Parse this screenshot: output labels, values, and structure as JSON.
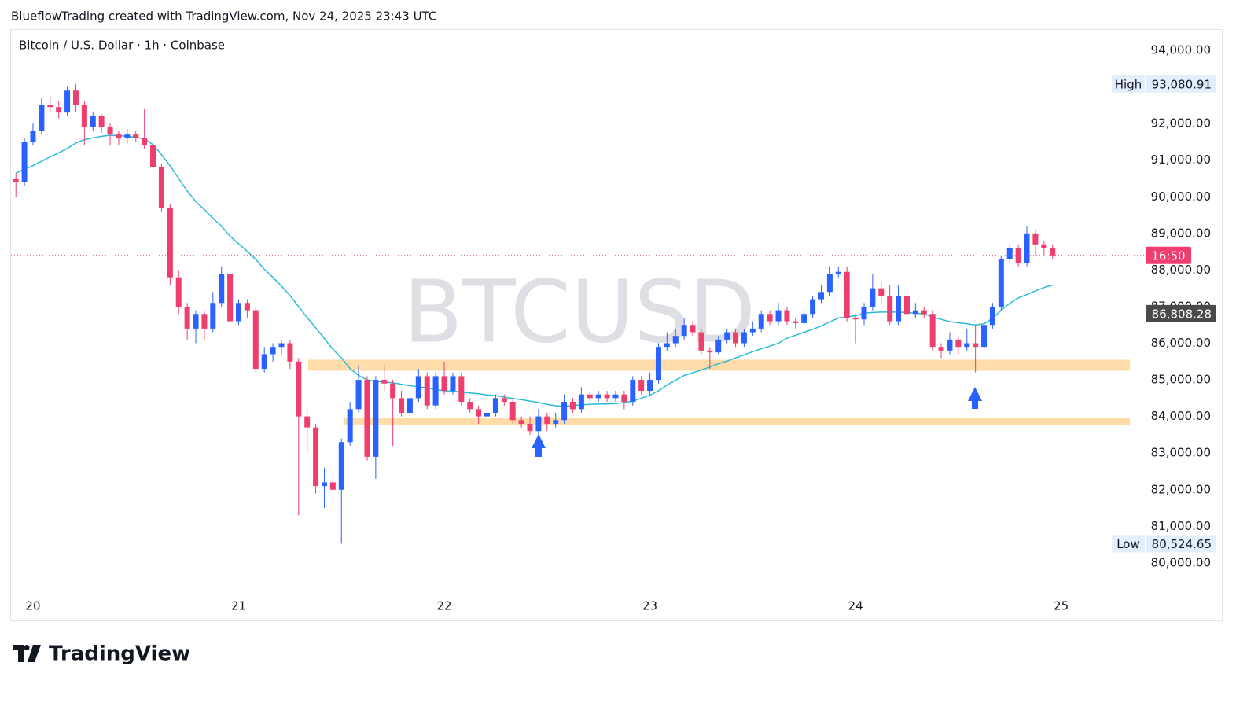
{
  "header": {
    "attribution": "BlueflowTrading created with TradingView.com, Nov 24, 2025 23:43 UTC"
  },
  "chart_data": {
    "type": "candlestick",
    "title": "Bitcoin / U.S. Dollar · 1h · Coinbase",
    "watermark": "BTCUSD",
    "up_color": "#2962ff",
    "down_color": "#ef3e6e",
    "x": [
      19.9167,
      19.9583,
      20,
      20.0417,
      20.0833,
      20.125,
      20.1667,
      20.2083,
      20.25,
      20.2917,
      20.3333,
      20.375,
      20.4167,
      20.4583,
      20.5,
      20.5417,
      20.5833,
      20.625,
      20.6667,
      20.7083,
      20.75,
      20.7917,
      20.8333,
      20.875,
      20.9167,
      20.9583,
      21,
      21.0417,
      21.0833,
      21.125,
      21.1667,
      21.2083,
      21.25,
      21.2917,
      21.3333,
      21.375,
      21.4167,
      21.4583,
      21.5,
      21.5417,
      21.5833,
      21.625,
      21.6667,
      21.7083,
      21.75,
      21.7917,
      21.8333,
      21.875,
      21.9167,
      21.9583,
      22,
      22.0417,
      22.0833,
      22.125,
      22.1667,
      22.2083,
      22.25,
      22.2917,
      22.3333,
      22.375,
      22.4167,
      22.4583,
      22.5,
      22.5417,
      22.5833,
      22.625,
      22.6667,
      22.7083,
      22.75,
      22.7917,
      22.8333,
      22.875,
      22.9167,
      22.9583,
      23,
      23.0417,
      23.0833,
      23.125,
      23.1667,
      23.2083,
      23.25,
      23.2917,
      23.3333,
      23.375,
      23.4167,
      23.4583,
      23.5,
      23.5417,
      23.5833,
      23.625,
      23.6667,
      23.7083,
      23.75,
      23.7917,
      23.8333,
      23.875,
      23.9167,
      23.9583,
      24,
      24.0417,
      24.0833,
      24.125,
      24.1667,
      24.2083,
      24.25,
      24.2917,
      24.3333,
      24.375,
      24.4167,
      24.4583,
      24.5,
      24.5417,
      24.5833,
      24.625,
      24.6667,
      24.7083,
      24.75,
      24.7917,
      24.8333,
      24.875,
      24.9167,
      24.9583
    ],
    "open": [
      90500,
      90400,
      91500,
      91800,
      92500,
      92450,
      92300,
      92900,
      92500,
      91900,
      92200,
      91900,
      91700,
      91600,
      91700,
      91600,
      91400,
      90800,
      89700,
      87800,
      87000,
      86400,
      86800,
      86400,
      87100,
      87900,
      86600,
      87100,
      86900,
      85300,
      85700,
      85900,
      86000,
      85500,
      84000,
      83700,
      82100,
      82200,
      82000,
      83300,
      84200,
      85000,
      82900,
      85000,
      84900,
      84500,
      84100,
      84500,
      85100,
      84300,
      85100,
      84700,
      85100,
      84400,
      84200,
      84000,
      84100,
      84500,
      84400,
      83900,
      83800,
      83600,
      84000,
      83800,
      83900,
      84400,
      84200,
      84600,
      84500,
      84600,
      84500,
      84600,
      84400,
      85000,
      84700,
      85000,
      85900,
      86000,
      86200,
      86500,
      86300,
      85800,
      85750,
      86100,
      86300,
      86000,
      86300,
      86400,
      86800,
      86600,
      86900,
      86600,
      86550,
      86800,
      87200,
      87400,
      87900,
      87950,
      86700,
      86650,
      87000,
      87500,
      87300,
      86600,
      87300,
      86800,
      86900,
      86800,
      85900,
      85800,
      86100,
      85900,
      86000,
      85900,
      86500,
      87000,
      88300,
      88600,
      88200,
      89000,
      88700,
      88600
    ],
    "high": [
      90650,
      91600,
      92000,
      92700,
      92750,
      92600,
      93000,
      93080.91,
      92600,
      92300,
      92250,
      92000,
      91800,
      91850,
      91800,
      92400,
      91500,
      90900,
      89800,
      88000,
      87100,
      86900,
      86900,
      87400,
      88100,
      88000,
      87200,
      87200,
      87000,
      85900,
      86000,
      86100,
      86100,
      85600,
      84200,
      83800,
      82600,
      82300,
      83400,
      84400,
      85400,
      85100,
      85100,
      85400,
      85000,
      84700,
      84700,
      85300,
      85200,
      85200,
      85500,
      85200,
      85200,
      84500,
      84300,
      84300,
      84600,
      84600,
      84500,
      84000,
      84000,
      84200,
      84100,
      84100,
      84600,
      84500,
      84800,
      84700,
      84700,
      84700,
      84700,
      84700,
      85100,
      85100,
      85200,
      86000,
      86300,
      86400,
      86700,
      86600,
      86400,
      85900,
      86200,
      86400,
      86400,
      86400,
      86600,
      86900,
      86900,
      87100,
      87000,
      86700,
      86900,
      87300,
      87600,
      88100,
      88100,
      88100,
      86800,
      87100,
      87900,
      87700,
      87600,
      87600,
      87400,
      87100,
      87000,
      86900,
      86000,
      86300,
      86200,
      86400,
      86500,
      86600,
      87100,
      88400,
      88700,
      88700,
      89200,
      89100,
      88800,
      88700
    ],
    "low": [
      90000,
      90300,
      91400,
      91700,
      92300,
      92150,
      92200,
      92300,
      91400,
      91800,
      91750,
      91400,
      91400,
      91450,
      91500,
      91300,
      90600,
      89600,
      87600,
      86800,
      86100,
      86000,
      86100,
      86300,
      87000,
      86500,
      86500,
      86700,
      85200,
      85200,
      85500,
      85700,
      85300,
      81300,
      83000,
      81900,
      81500,
      81900,
      80524.65,
      83200,
      84100,
      82800,
      82300,
      84700,
      83200,
      84000,
      84000,
      84400,
      84200,
      84200,
      84600,
      84600,
      84300,
      84100,
      83800,
      83800,
      84000,
      84300,
      83800,
      83700,
      83500,
      83500,
      83600,
      83700,
      83800,
      84100,
      84100,
      84400,
      84400,
      84400,
      84400,
      84200,
      84300,
      84600,
      84600,
      84900,
      85800,
      85900,
      86100,
      86200,
      85700,
      85300,
      85700,
      86000,
      85900,
      85900,
      86200,
      86300,
      86500,
      86500,
      86500,
      86400,
      86500,
      86700,
      87100,
      87300,
      87800,
      86600,
      86000,
      86500,
      86900,
      87100,
      86500,
      86500,
      86700,
      86700,
      86700,
      85800,
      85600,
      85700,
      85700,
      85800,
      85200,
      85800,
      86400,
      86900,
      88200,
      88100,
      88100,
      88400,
      88400,
      88300
    ],
    "close": [
      90400,
      91500,
      91800,
      92500,
      92450,
      92300,
      92900,
      92500,
      91900,
      92200,
      91900,
      91700,
      91600,
      91700,
      91600,
      91400,
      90800,
      89700,
      87800,
      87000,
      86400,
      86800,
      86400,
      87100,
      87900,
      86600,
      87100,
      86900,
      85300,
      85700,
      85900,
      86000,
      85500,
      84000,
      83700,
      82100,
      82200,
      82000,
      83300,
      84200,
      85000,
      82900,
      85000,
      84900,
      84500,
      84100,
      84500,
      85100,
      84300,
      85100,
      84700,
      85100,
      84400,
      84200,
      84000,
      84100,
      84500,
      84400,
      83900,
      83800,
      83600,
      84000,
      83800,
      83900,
      84400,
      84200,
      84600,
      84500,
      84600,
      84500,
      84600,
      84400,
      85000,
      84700,
      85000,
      85900,
      86000,
      86200,
      86500,
      86300,
      85800,
      85750,
      86100,
      86300,
      86000,
      86300,
      86400,
      86800,
      86600,
      86900,
      86600,
      86550,
      86800,
      87200,
      87400,
      87900,
      87950,
      86700,
      86650,
      87000,
      87500,
      87300,
      86600,
      87300,
      86800,
      86900,
      86800,
      85900,
      85800,
      86100,
      85900,
      86000,
      85900,
      86500,
      87000,
      88300,
      88600,
      88200,
      89000,
      88700,
      88600,
      88400
    ],
    "ma": {
      "color": "#26bcd6",
      "values": [
        90650,
        90750,
        90850,
        90970,
        91090,
        91200,
        91320,
        91470,
        91560,
        91610,
        91650,
        91680,
        91670,
        91650,
        91620,
        91580,
        91430,
        91150,
        90850,
        90500,
        90160,
        89870,
        89650,
        89410,
        89200,
        88920,
        88720,
        88510,
        88290,
        88020,
        87800,
        87560,
        87300,
        87000,
        86700,
        86420,
        86130,
        85830,
        85600,
        85310,
        85120,
        85000,
        84960,
        84940,
        84920,
        84880,
        84840,
        84810,
        84780,
        84740,
        84700,
        84690,
        84670,
        84640,
        84620,
        84590,
        84570,
        84530,
        84490,
        84460,
        84420,
        84380,
        84330,
        84290,
        84280,
        84300,
        84320,
        84330,
        84340,
        84340,
        84350,
        84380,
        84420,
        84500,
        84580,
        84700,
        84860,
        84990,
        85120,
        85190,
        85270,
        85350,
        85440,
        85510,
        85600,
        85680,
        85770,
        85850,
        85920,
        86000,
        86140,
        86220,
        86300,
        86380,
        86470,
        86580,
        86690,
        86720,
        86750,
        86820,
        86840,
        86850,
        86850,
        86850,
        86840,
        86820,
        86800,
        86720,
        86650,
        86590,
        86560,
        86530,
        86500,
        86530,
        86680,
        86900,
        87090,
        87240,
        87330,
        87430,
        87520,
        87590
      ]
    },
    "ma_label": {
      "value": 86808.28,
      "label": "86,808.28"
    },
    "high_label": {
      "text": "High",
      "value": 93080.91,
      "label": "93,080.91"
    },
    "low_label": {
      "text": "Low",
      "value": 80524.65,
      "label": "80,524.65"
    },
    "countdown": "16:50",
    "zones": [
      {
        "color": "#ffdca8",
        "ylim": [
          85250,
          85550
        ],
        "xlim": [
          21.338,
          25.335
        ]
      },
      {
        "color": "#ffdca8",
        "ylim": [
          83770,
          83950
        ],
        "xlim": [
          21.51,
          25.335
        ]
      }
    ],
    "xlim": [
      19.893,
      25.403
    ],
    "xticks": [
      20,
      21,
      22,
      23,
      24,
      25
    ],
    "ylim": [
      79160,
      94580
    ],
    "yticks": [
      {
        "value": 80000,
        "label": "80,000.00"
      },
      {
        "value": 81000,
        "label": "81,000.00"
      },
      {
        "value": 82000,
        "label": "82,000.00"
      },
      {
        "value": 83000,
        "label": "83,000.00"
      },
      {
        "value": 84000,
        "label": "84,000.00"
      },
      {
        "value": 85000,
        "label": "85,000.00"
      },
      {
        "value": 86000,
        "label": "86,000.00"
      },
      {
        "value": 87000,
        "label": "87,000.00"
      },
      {
        "value": 88000,
        "label": "88,000.00"
      },
      {
        "value": 89000,
        "label": "89,000.00"
      },
      {
        "value": 90000,
        "label": "90,000.00"
      },
      {
        "value": 91000,
        "label": "91,000.00"
      },
      {
        "value": 92000,
        "label": "92,000.00"
      },
      {
        "value": 93000,
        "label": "93,000.00"
      },
      {
        "value": 94000,
        "label": "94,000.00"
      }
    ]
  },
  "footer": {
    "logo": "TradingView"
  }
}
